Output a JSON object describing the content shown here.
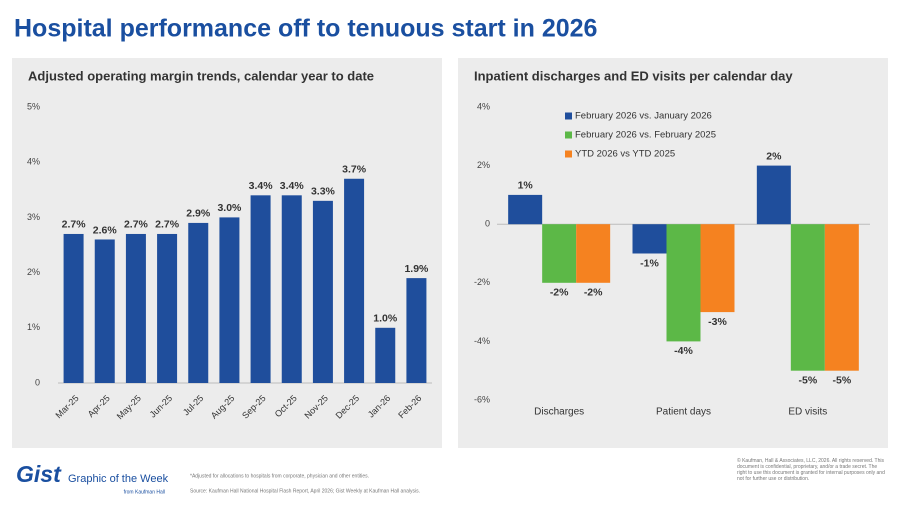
{
  "title": "Hospital performance off to tenuous start in 2026",
  "chart_data": [
    {
      "type": "bar",
      "title": "Adjusted operating margin trends, calendar year to date",
      "categories": [
        "Mar-25",
        "Apr-25",
        "May-25",
        "Jun-25",
        "Jul-25",
        "Aug-25",
        "Sep-25",
        "Oct-25",
        "Nov-25",
        "Dec-25",
        "Jan-26",
        "Feb-26"
      ],
      "values": [
        2.7,
        2.6,
        2.7,
        2.7,
        2.9,
        3.0,
        3.4,
        3.4,
        3.3,
        3.7,
        1.0,
        1.9
      ],
      "value_labels": [
        "2.7%",
        "2.6%",
        "2.7%",
        "2.7%",
        "2.9%",
        "3.0%",
        "3.4%",
        "3.4%",
        "3.3%",
        "3.7%",
        "1.0%",
        "1.9%"
      ],
      "color": "#1f4e9c",
      "ylim": [
        0,
        5
      ],
      "yticks": [
        0,
        {
          "value": 1,
          "label": "1%"
        },
        {
          "value": 2,
          "label": "2%"
        },
        {
          "value": 3,
          "label": "3%"
        },
        {
          "value": 4,
          "label": "4%"
        },
        {
          "value": 5,
          "label": "5%"
        }
      ]
    },
    {
      "type": "bar",
      "title": "Inpatient discharges and ED visits per calendar day",
      "categories": [
        "Discharges",
        "Patient days",
        "ED visits"
      ],
      "series": [
        {
          "name": "February 2026 vs. January 2026",
          "color": "#1f4e9c",
          "values": [
            1,
            -1,
            2
          ],
          "value_labels": [
            "1%",
            "-1%",
            "2%"
          ]
        },
        {
          "name": "February 2026 vs. February 2025",
          "color": "#5cb847",
          "values": [
            -2,
            -4,
            -5
          ],
          "value_labels": [
            "-2%",
            "-4%",
            "-5%"
          ]
        },
        {
          "name": "YTD 2026 vs YTD 2025",
          "color": "#f58220",
          "values": [
            -2,
            -3,
            -5
          ],
          "value_labels": [
            "-2%",
            "-3%",
            "-5%"
          ]
        }
      ],
      "ylim": [
        -6,
        4
      ],
      "yticks": [
        {
          "value": -6,
          "label": "-6%"
        },
        {
          "value": -4,
          "label": "-4%"
        },
        {
          "value": -2,
          "label": "-2%"
        },
        0,
        {
          "value": 2,
          "label": "2%"
        },
        {
          "value": 4,
          "label": "4%"
        }
      ],
      "legend": "top-left"
    }
  ],
  "footer": {
    "logo": "Gist",
    "tagline": "Graphic of the Week",
    "byline": "from Kaufman Hall",
    "note": "*Adjusted for allocations to hospitals from corporate, physician and other entities.",
    "source": "Source: Kaufman Hall National Hospital Flash Report, April 2026; Gist Weekly at Kaufman Hall analysis.",
    "copyright": "© Kaufman, Hall & Associates, LLC, 2026. All rights reserved. This document is confidential, proprietary, and/or a trade secret. The right to use this document is granted for internal purposes only and not for further use or distribution."
  }
}
